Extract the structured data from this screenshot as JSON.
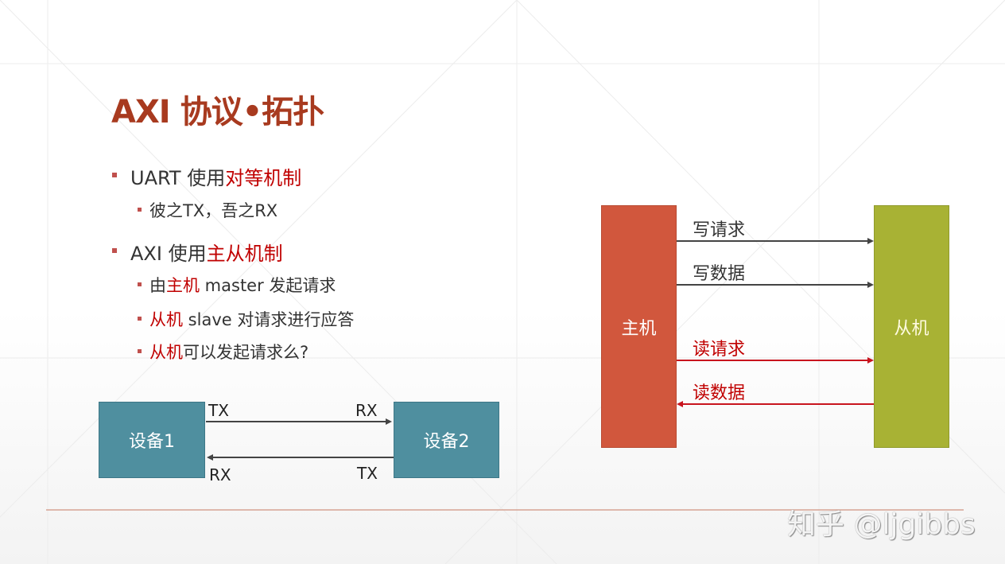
{
  "title": "AXI 协议•拓扑",
  "bullets": [
    {
      "pre": "UART 使用",
      "hl": "对等机制",
      "post": ""
    },
    {
      "pre": "彼之TX，吾之RX",
      "hl": "",
      "post": ""
    },
    {
      "pre": "AXI 使用",
      "hl": "主从机制",
      "post": ""
    },
    {
      "pre": "由",
      "hl": "主机",
      "post": " master 发起请求"
    },
    {
      "pre": "",
      "hl": "从机",
      "post": " slave 对请求进行应答"
    },
    {
      "pre": "",
      "hl": "从机",
      "post": "可以发起请求么?"
    }
  ],
  "uart_diagram": {
    "device1": "设备1",
    "device2": "设备2",
    "tx_left": "TX",
    "rx_right": "RX",
    "rx_left": "RX",
    "tx_right": "TX"
  },
  "axi_diagram": {
    "master": "主机",
    "slave": "从机",
    "write_request": "写请求",
    "write_data": "写数据",
    "read_request": "读请求",
    "read_data": "读数据"
  },
  "watermark": "知乎 @ljgibbs",
  "colors": {
    "title": "#a83a1f",
    "highlight": "#c00000",
    "master": "#d1573d",
    "slave": "#a8b234",
    "device": "#4f8f9f"
  }
}
